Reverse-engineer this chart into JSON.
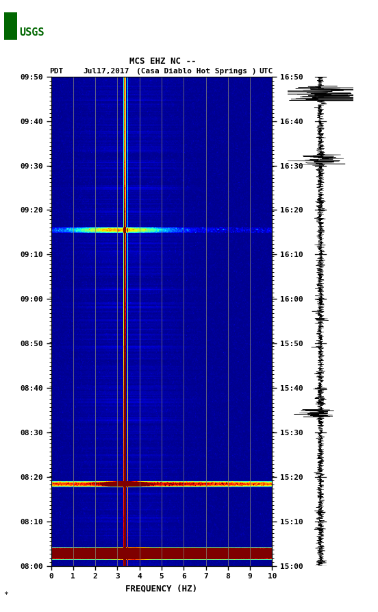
{
  "title_line1": "MCS EHZ NC --",
  "title_line2_pdt": "PDT",
  "title_line2_date": "Jul17,2017",
  "title_line2_loc": "(Casa Diablo Hot Springs )",
  "title_line2_utc": "UTC",
  "xlabel": "FREQUENCY (HZ)",
  "left_yticks": [
    "08:00",
    "08:10",
    "08:20",
    "08:30",
    "08:40",
    "08:50",
    "09:00",
    "09:10",
    "09:20",
    "09:30",
    "09:40",
    "09:50"
  ],
  "right_yticks": [
    "15:00",
    "15:10",
    "15:20",
    "15:30",
    "15:40",
    "15:50",
    "16:00",
    "16:10",
    "16:20",
    "16:30",
    "16:40",
    "16:50"
  ],
  "xticks": [
    0,
    1,
    2,
    3,
    4,
    5,
    6,
    7,
    8,
    9,
    10
  ],
  "freq_min": 0,
  "freq_max": 10,
  "grid_color": "#888877",
  "grid_linewidth": 0.6,
  "vertical_lines": [
    1,
    2,
    3,
    4,
    5,
    6,
    7,
    8,
    9
  ],
  "figure_bg": "#ffffff",
  "usgs_color": "#006600"
}
